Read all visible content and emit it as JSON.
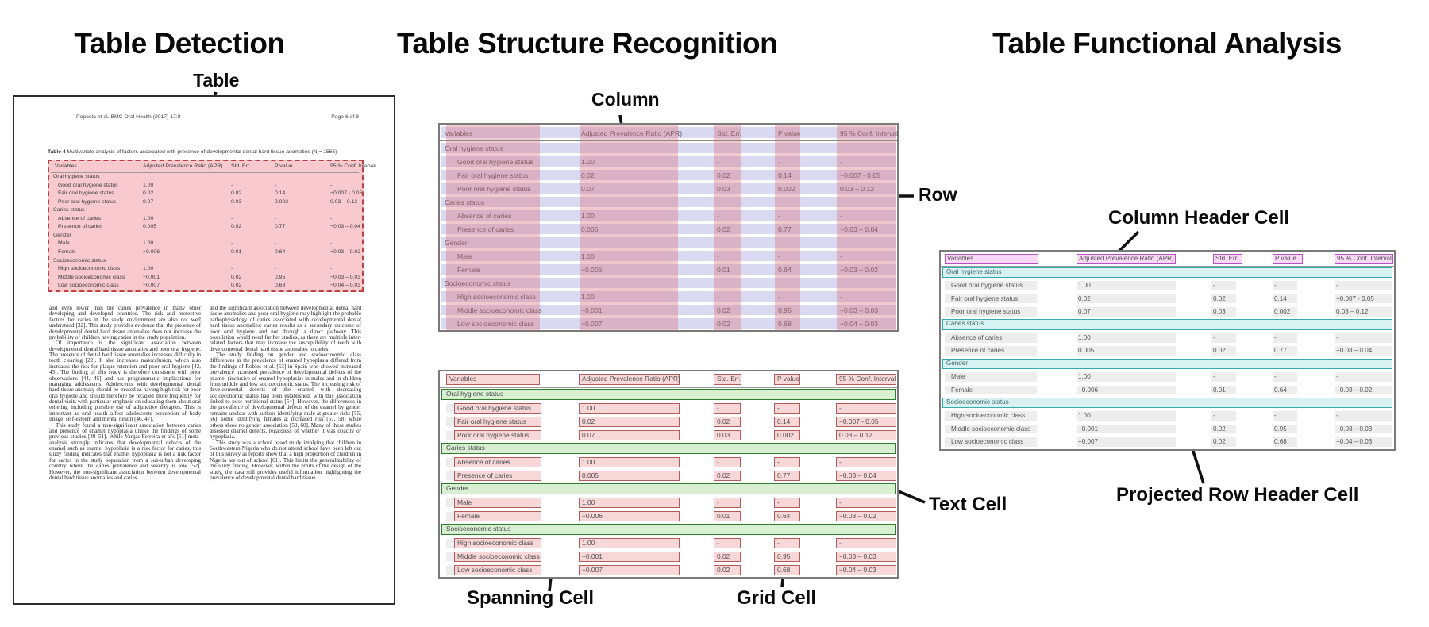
{
  "titles": {
    "detection": "Table Detection",
    "structure": "Table Structure Recognition",
    "functional": "Table Functional Analysis"
  },
  "annotations": {
    "table": "Table",
    "column": "Column",
    "row": "Row",
    "spanning_cell": "Spanning Cell",
    "grid_cell": "Grid Cell",
    "text_cell": "Text Cell",
    "column_header_cell": "Column Header Cell",
    "projected_row_header_cell": "Projected Row Header Cell"
  },
  "colors": {
    "detection_fill": "#f6cdd3",
    "detection_border": "#bf4040",
    "row_stripe": "#d9daf2",
    "column_band": "#de7885",
    "grid_cell_fill": "#f8d4d6",
    "grid_cell_border": "#b25b5b",
    "spanning_fill": "#d9efd1",
    "spanning_border": "#2e7d32",
    "column_header_fill": "#f9d9f6",
    "column_header_border": "#ba50c2",
    "projected_fill": "#d7f2f1",
    "projected_border": "#39a9ad",
    "text_cell_fill": "#ededed"
  },
  "document": {
    "header_left": "Popoola et al. BMC Oral Health  (2017) 17:8",
    "header_right": "Page 6 of 8",
    "caption_label": "Table 4",
    "caption_text": " Multivariate analysis of factors associated with presence of developmental dental hard tissue anomalies (N = 1565)",
    "body_left_paragraphs": [
      "and even lower than the caries prevalence in many other developing and developed countries. The risk and protective factors for caries in the study environment are also not well understood [32]. This study provides evidence that the presence of developmental dental hard tissue anomalies does not increase the probability of children having caries in the study population.",
      "Of importance is the significant association between developmental dental hard tissue anomalies and poor oral hygiene. The presence of dental hard tissue anomalies increases difficulty in tooth cleaning [22]. It also increases malocclusion, which also increases the risk for plaque retention and poor oral hygiene [42, 43]. The finding of this study is therefore consistent with prior observations [44, 45] and has programmatic implications for managing adolescents. Adolescents with developmental dental hard tissue anomaly should be treated as having high risk for poor oral hygiene and should therefore be recalled more frequently for dental visits with particular emphasis on educating them about oral toileting including possible use of adjunctive therapies. This is important as oral health affect adolescents perception of body image, self-esteem and mental health [46, 47].",
      "This study found a non-significant association between caries and presence of enamel hypoplasia unlike the findings of some previous studies [48–51]. While Vargas-Ferreira et al's [51] meta-analysis strongly indicates that developmental defects of the enamel such as enamel hypoplasia is a risk factor for caries, this study finding indicates that enamel hypoplasia is not a risk factor for caries in the study population from a sub-urban developing country where the caries prevalence and severity is low [52]. However, the non-significant association between developmental dental hard tissue anomalies and caries"
    ],
    "body_right_paragraphs": [
      "and the significant association between developmental dental hard tissue anomalies and poor oral hygiene may highlight the probable pathophysiology of caries associated with developmental dental hard tissue anomalies: caries results as a secondary outcome of poor oral hygiene and not through a direct pathway. This postulation would need further studies, as there are multiple inter-related factors that may increase the susceptibility of teeth with developmental dental hard tissue anomalies to caries.",
      "The study finding on gender and socioeconomic class differences in the prevalence of enamel hypoplasia differed from the findings of Robles et al. [53] in Spain who showed increased prevalence increased prevalence of developmental defects of the enamel (inclusive of enamel hypoplasia) in males and in children from middle and low socioeconomic status. The increasing risk of developmental defects of the enamel with decreasing socioeconomic status had been established, with this association linked to poor nutritional status [54]. However, the differences in the prevalence of developmental defects of the enamel by gender remains unclear with authors identifying male at greater risks [55, 56], some identifying females at increased risk [57, 58] while others show no gender association [59, 60]. Many of these studies assessed enamel defects, regardless of whether it was opacity or hypoplasia.",
      "This study was a school based study implying that children in Southwestern Nigeria who do not attend school have been left out of this survey as reports show that a high proportion of children in Nigeria are out of school [61]. This limits the generalizability of the study finding. However, within the limits of the design of the study, the data still provides useful information highlighting the prevalence of developmental dental hard tissue"
    ]
  },
  "table": {
    "headers": [
      "Variables",
      "Adjusted Prevalence Ratio (APR)",
      "Std. Err.",
      "P value",
      "95 % Conf. Interval"
    ],
    "rows": [
      {
        "type": "section",
        "label": "Oral hygiene status",
        "values": [
          "",
          "",
          "",
          ""
        ]
      },
      {
        "type": "data",
        "label": "Good oral hygiene status",
        "values": [
          "1.00",
          "-",
          "-",
          "-"
        ]
      },
      {
        "type": "data",
        "label": "Fair oral hygiene status",
        "values": [
          "0.02",
          "0.02",
          "0.14",
          "−0.007 - 0.05"
        ]
      },
      {
        "type": "data",
        "label": "Poor oral hygiene status",
        "values": [
          "0.07",
          "0.03",
          "0.002",
          "0.03 – 0.12"
        ]
      },
      {
        "type": "section",
        "label": "Caries status",
        "values": [
          "",
          "",
          "",
          ""
        ]
      },
      {
        "type": "data",
        "label": "Absence of caries",
        "values": [
          "1.00",
          "-",
          "-",
          "-"
        ]
      },
      {
        "type": "data",
        "label": "Presence of caries",
        "values": [
          "0.005",
          "0.02",
          "0.77",
          "−0.03 – 0.04"
        ]
      },
      {
        "type": "section",
        "label": "Gender",
        "values": [
          "",
          "",
          "",
          ""
        ]
      },
      {
        "type": "data",
        "label": "Male",
        "values": [
          "1.00",
          "-",
          "-",
          "-"
        ]
      },
      {
        "type": "data",
        "label": "Female",
        "values": [
          "−0.006",
          "0.01",
          "0.64",
          "−0.03 – 0.02"
        ]
      },
      {
        "type": "section",
        "label": "Socioeconomic status",
        "values": [
          "",
          "",
          "",
          ""
        ]
      },
      {
        "type": "data",
        "label": "High socioeconomic class",
        "values": [
          "1.00",
          "-",
          "-",
          "-"
        ]
      },
      {
        "type": "data",
        "label": "Middle socioeconomic class",
        "values": [
          "−0.001",
          "0.02",
          "0.95",
          "−0.03 – 0.03"
        ]
      },
      {
        "type": "data",
        "label": "Low socioeconomic class",
        "values": [
          "−0.007",
          "0.02",
          "0.68",
          "−0.04 – 0.03"
        ]
      }
    ]
  }
}
